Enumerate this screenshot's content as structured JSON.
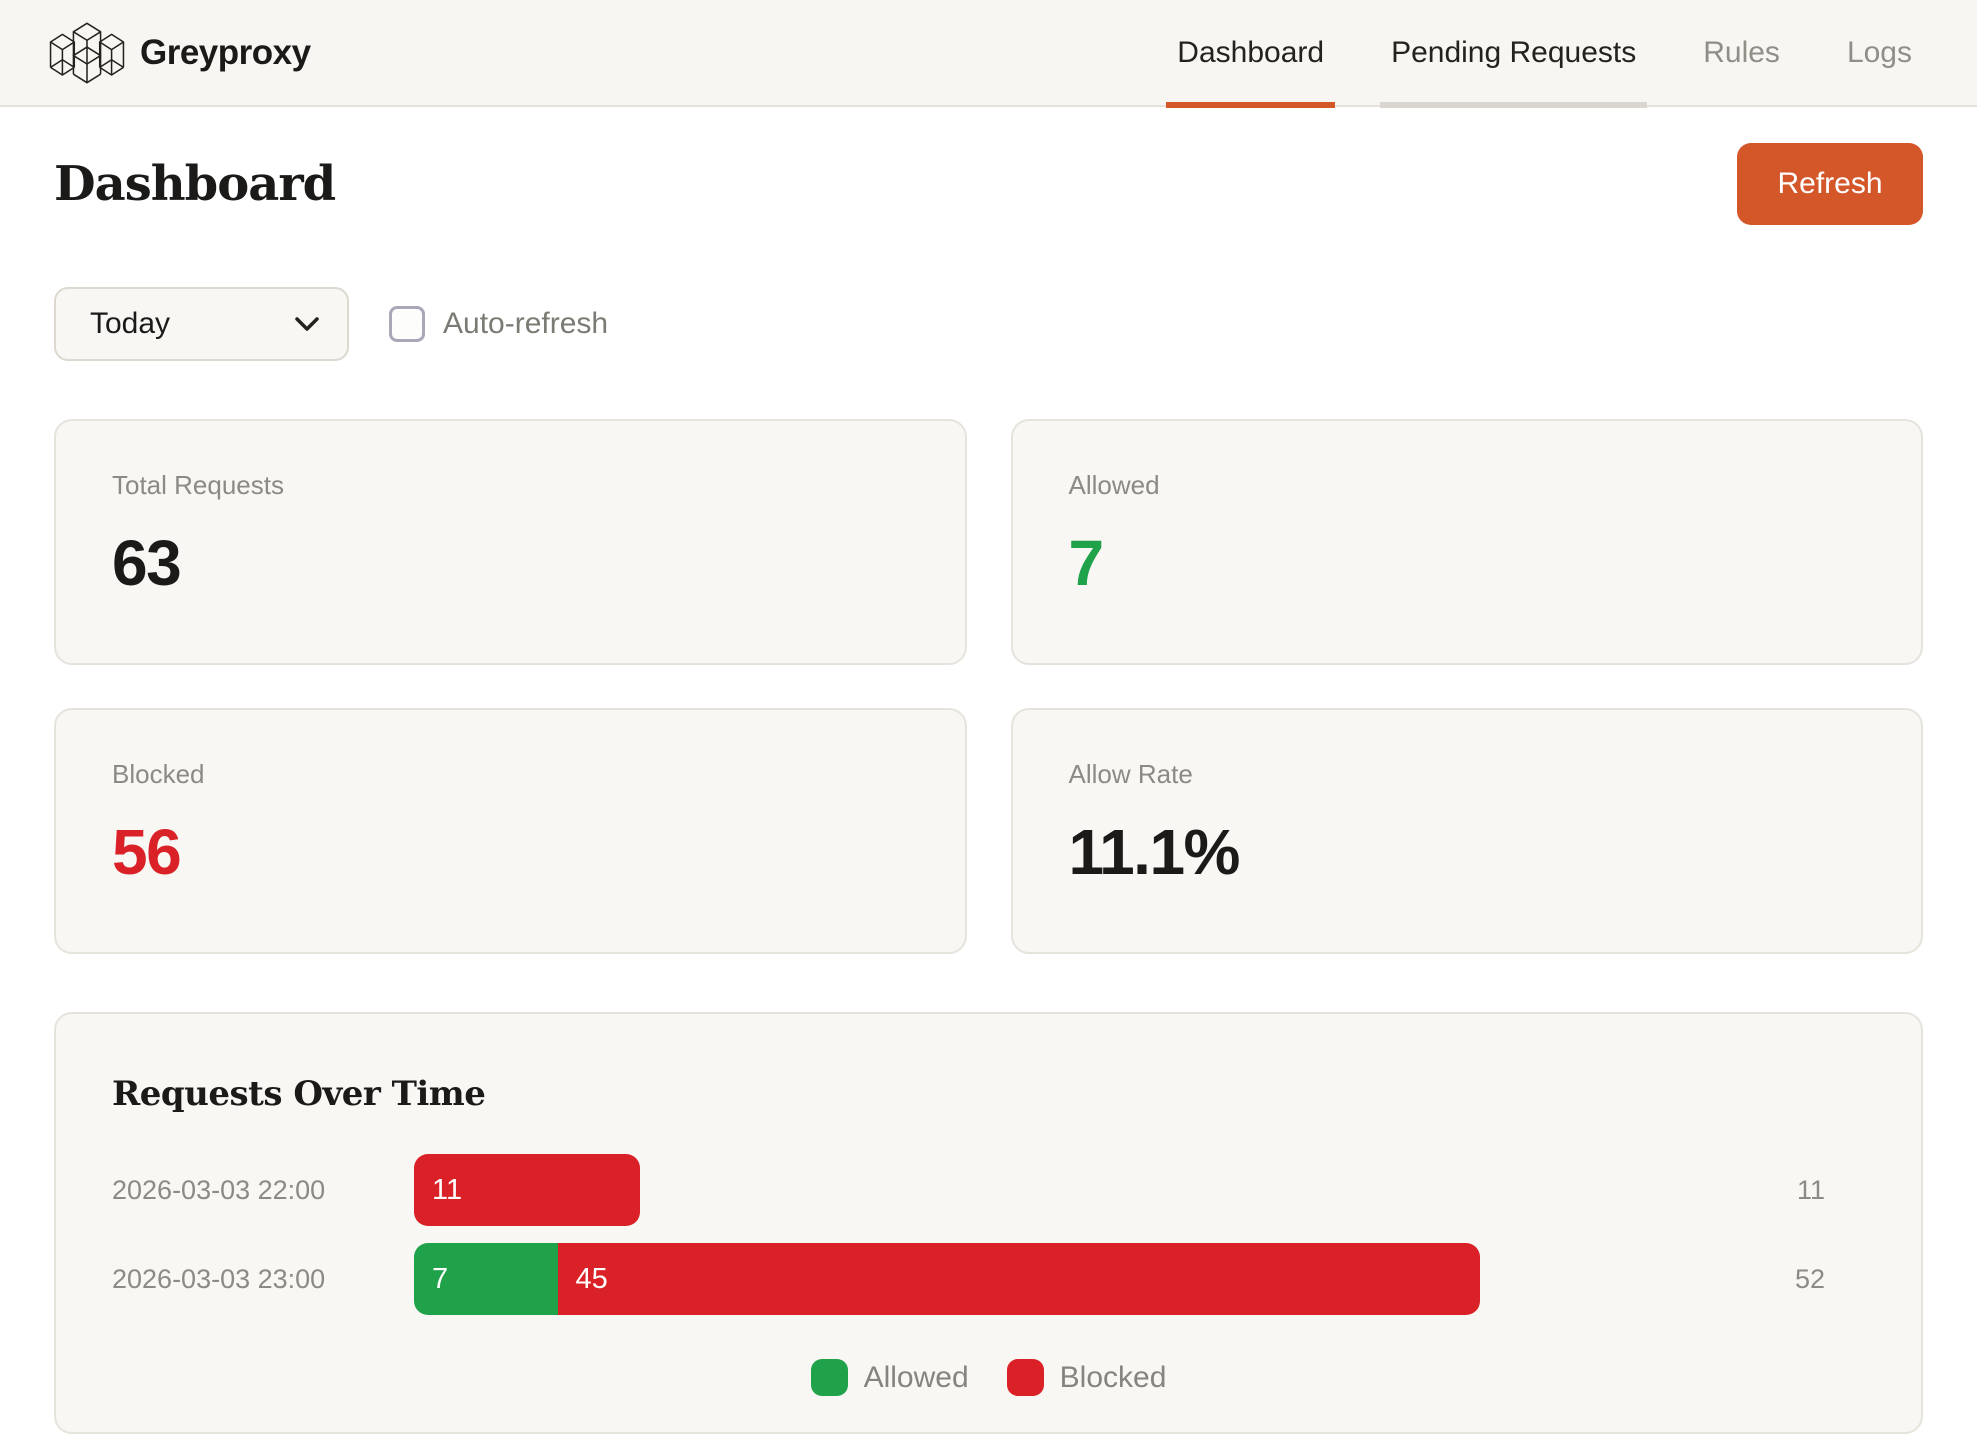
{
  "brand": {
    "name": "Greyproxy"
  },
  "nav": [
    {
      "label": "Dashboard",
      "state": "active"
    },
    {
      "label": "Pending Requests",
      "state": "secondary"
    },
    {
      "label": "Rules",
      "state": "default"
    },
    {
      "label": "Logs",
      "state": "default"
    }
  ],
  "page": {
    "title": "Dashboard",
    "refresh_label": "Refresh"
  },
  "filters": {
    "period": "Today",
    "auto_refresh_label": "Auto-refresh",
    "auto_refresh_checked": false
  },
  "stats": [
    {
      "label": "Total Requests",
      "value": "63",
      "color": "#1b1a18"
    },
    {
      "label": "Allowed",
      "value": "7",
      "color": "#1fa24a"
    },
    {
      "label": "Blocked",
      "value": "56",
      "color": "#da2127"
    },
    {
      "label": "Allow Rate",
      "value": "11.1%",
      "color": "#1b1a18"
    }
  ],
  "chart_data": {
    "type": "bar",
    "orientation": "horizontal",
    "title": "Requests Over Time",
    "categories": [
      "2026-03-03 22:00",
      "2026-03-03 23:00"
    ],
    "series": [
      {
        "name": "Allowed",
        "color": "#1fa24a",
        "values": [
          0,
          7
        ]
      },
      {
        "name": "Blocked",
        "color": "#da2127",
        "values": [
          11,
          45
        ]
      }
    ],
    "totals": [
      11,
      52
    ],
    "xlim": [
      0,
      64
    ],
    "grid": false,
    "legend": [
      "Allowed",
      "Blocked"
    ],
    "legend_position": "bottom"
  },
  "colors": {
    "accent_orange": "#d4572a",
    "allowed_green": "#1fa24a",
    "blocked_red": "#da2127",
    "header_bg": "#f7f6f2",
    "card_bg": "#f8f7f3",
    "card_border": "#e6e3dc",
    "muted_text": "#8b8a84",
    "secondary_underline": "#d9d6cf"
  }
}
